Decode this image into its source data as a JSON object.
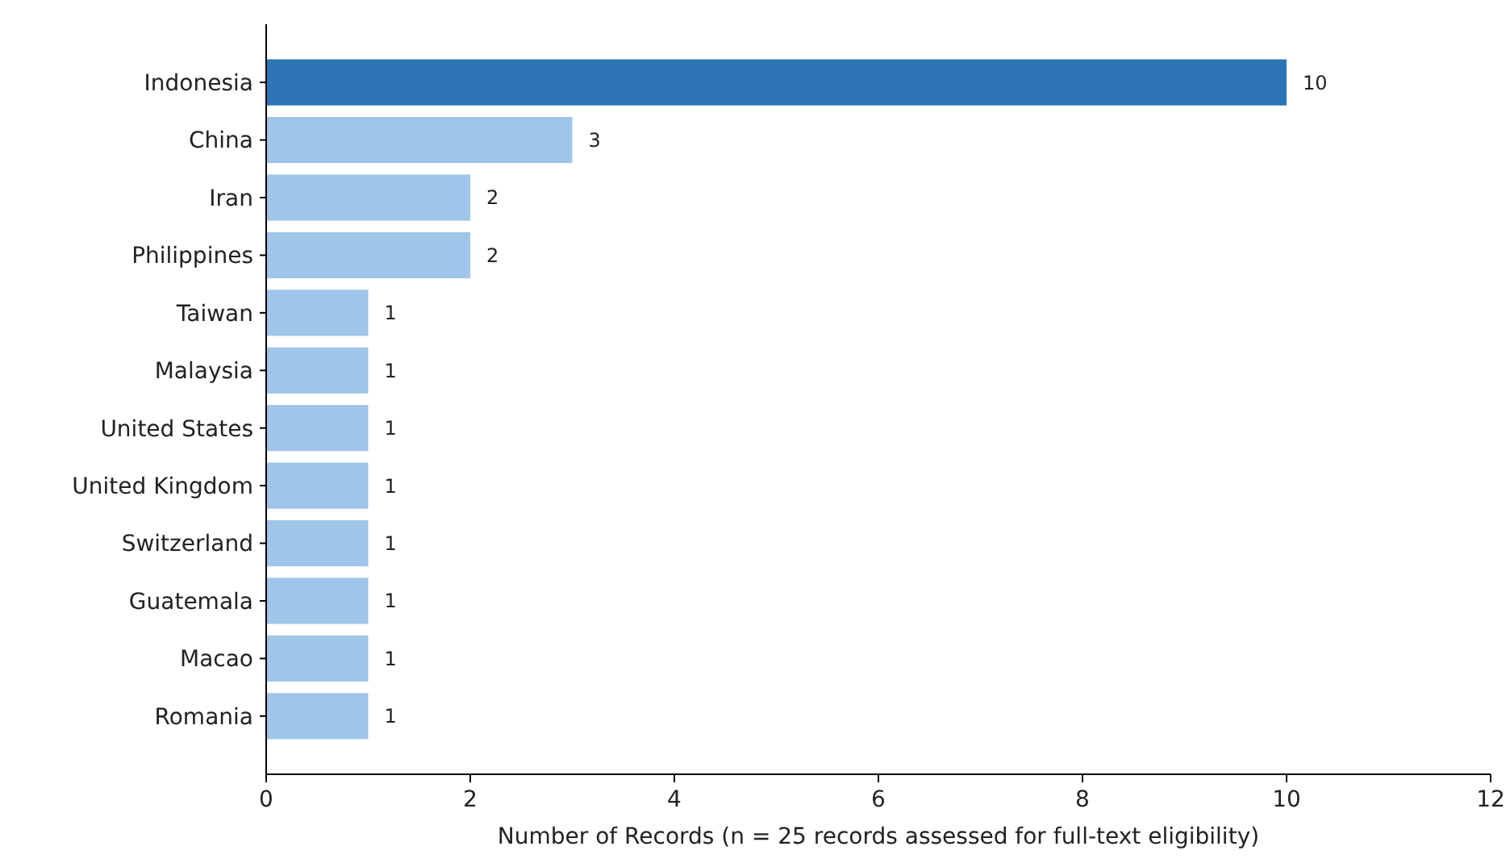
{
  "chart_data": {
    "type": "bar",
    "orientation": "horizontal",
    "xlabel": "Number of Records (n = 25 records assessed for full-text eligibility)",
    "categories": [
      "Indonesia",
      "China",
      "Iran",
      "Philippines",
      "Taiwan",
      "Malaysia",
      "United States",
      "United Kingdom",
      "Switzerland",
      "Guatemala",
      "Macao",
      "Romania"
    ],
    "values": [
      10,
      3,
      2,
      2,
      1,
      1,
      1,
      1,
      1,
      1,
      1,
      1
    ],
    "colors": [
      "#2e75b6",
      "#9fc5e8",
      "#9fc5e8",
      "#9fc5e8",
      "#9fc5e8",
      "#9fc5e8",
      "#9fc5e8",
      "#9fc5e8",
      "#9fc5e8",
      "#9fc5e8",
      "#9fc5e8",
      "#9fc5e8"
    ],
    "xlim": [
      0,
      12
    ],
    "xticks": [
      0,
      2,
      4,
      6,
      8,
      10,
      12
    ],
    "data_labels": true
  }
}
